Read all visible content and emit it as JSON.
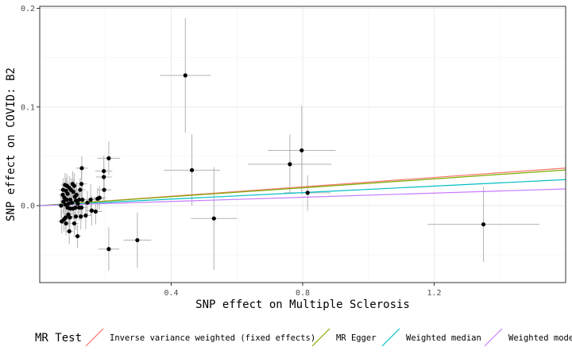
{
  "chart_data": {
    "type": "scatter",
    "xlabel": "SNP effect on Multiple Sclerosis",
    "ylabel": "SNP effect on COVID: B2",
    "xlim": [
      0,
      1.6
    ],
    "ylim": [
      -0.078,
      0.202
    ],
    "x_ticks": [
      {
        "value": 0.4,
        "label": "0.4"
      },
      {
        "value": 0.8,
        "label": "0.8"
      },
      {
        "value": 1.2,
        "label": "1.2"
      }
    ],
    "y_ticks": [
      {
        "value": 0.0,
        "label": "0.0"
      },
      {
        "value": 0.1,
        "label": "0.1"
      },
      {
        "value": 0.2,
        "label": "0.2"
      }
    ],
    "grid": true,
    "legend_position": "bottom",
    "legend_title": "MR Test",
    "lines": [
      {
        "name": "Inverse variance weighted (fixed effects)",
        "slope": 0.0238,
        "intercept": 0.0,
        "color": "#F8766D"
      },
      {
        "name": "MR Egger",
        "slope": 0.0226,
        "intercept": 0.0,
        "color": "#7CAE00"
      },
      {
        "name": "Weighted median",
        "slope": 0.0165,
        "intercept": 0.0,
        "color": "#00BFC4"
      },
      {
        "name": "Weighted mode",
        "slope": 0.0106,
        "intercept": 0.0,
        "color": "#C77CFF"
      }
    ],
    "points": [
      {
        "x": 0.443,
        "y": 0.132,
        "xerr": 0.077,
        "yerr": 0.058
      },
      {
        "x": 0.463,
        "y": 0.036,
        "xerr": 0.085,
        "yerr": 0.036
      },
      {
        "x": 0.797,
        "y": 0.056,
        "xerr": 0.103,
        "yerr": 0.045
      },
      {
        "x": 0.761,
        "y": 0.042,
        "xerr": 0.127,
        "yerr": 0.03
      },
      {
        "x": 0.815,
        "y": 0.013,
        "xerr": 0.07,
        "yerr": 0.018
      },
      {
        "x": 0.53,
        "y": -0.013,
        "xerr": 0.07,
        "yerr": 0.052
      },
      {
        "x": 1.35,
        "y": -0.019,
        "xerr": 0.17,
        "yerr": 0.038
      },
      {
        "x": 0.297,
        "y": -0.035,
        "xerr": 0.042,
        "yerr": 0.028
      },
      {
        "x": 0.21,
        "y": -0.044,
        "xerr": 0.032,
        "yerr": 0.022
      },
      {
        "x": 0.21,
        "y": 0.048,
        "xerr": 0.035,
        "yerr": 0.017
      },
      {
        "x": 0.195,
        "y": 0.035,
        "xerr": 0.026,
        "yerr": 0.016
      },
      {
        "x": 0.195,
        "y": 0.029,
        "xerr": 0.024,
        "yerr": 0.014
      },
      {
        "x": 0.196,
        "y": 0.016,
        "xerr": 0.022,
        "yerr": 0.014
      },
      {
        "x": 0.182,
        "y": 0.008,
        "xerr": 0.02,
        "yerr": 0.012
      },
      {
        "x": 0.176,
        "y": 0.007,
        "xerr": 0.02,
        "yerr": 0.011
      },
      {
        "x": 0.17,
        "y": -0.006,
        "xerr": 0.02,
        "yerr": 0.013
      },
      {
        "x": 0.158,
        "y": -0.005,
        "xerr": 0.019,
        "yerr": 0.015
      },
      {
        "x": 0.155,
        "y": 0.006,
        "xerr": 0.018,
        "yerr": 0.016
      },
      {
        "x": 0.145,
        "y": 0.003,
        "xerr": 0.018,
        "yerr": 0.012
      },
      {
        "x": 0.14,
        "y": -0.01,
        "xerr": 0.018,
        "yerr": 0.014
      },
      {
        "x": 0.13,
        "y": 0.006,
        "xerr": 0.018,
        "yerr": 0.015
      },
      {
        "x": 0.127,
        "y": -0.002,
        "xerr": 0.017,
        "yerr": 0.012
      },
      {
        "x": 0.125,
        "y": -0.011,
        "xerr": 0.016,
        "yerr": 0.013
      },
      {
        "x": 0.128,
        "y": 0.038,
        "xerr": 0.018,
        "yerr": 0.012
      },
      {
        "x": 0.127,
        "y": 0.022,
        "xerr": 0.017,
        "yerr": 0.014
      },
      {
        "x": 0.123,
        "y": 0.016,
        "xerr": 0.017,
        "yerr": 0.012
      },
      {
        "x": 0.12,
        "y": 0.006,
        "xerr": 0.016,
        "yerr": 0.013
      },
      {
        "x": 0.12,
        "y": -0.002,
        "xerr": 0.016,
        "yerr": 0.013
      },
      {
        "x": 0.116,
        "y": 0.002,
        "xerr": 0.016,
        "yerr": 0.012
      },
      {
        "x": 0.112,
        "y": 0.011,
        "xerr": 0.015,
        "yerr": 0.013
      },
      {
        "x": 0.11,
        "y": -0.011,
        "xerr": 0.015,
        "yerr": 0.014
      },
      {
        "x": 0.11,
        "y": 0.005,
        "xerr": 0.015,
        "yerr": 0.012
      },
      {
        "x": 0.109,
        "y": -0.002,
        "xerr": 0.015,
        "yerr": 0.012
      },
      {
        "x": 0.107,
        "y": 0.009,
        "xerr": 0.015,
        "yerr": 0.012
      },
      {
        "x": 0.105,
        "y": 0.02,
        "xerr": 0.015,
        "yerr": 0.013
      },
      {
        "x": 0.102,
        "y": -0.003,
        "xerr": 0.015,
        "yerr": 0.011
      },
      {
        "x": 0.102,
        "y": 0.014,
        "xerr": 0.015,
        "yerr": 0.013
      },
      {
        "x": 0.1,
        "y": 0.022,
        "xerr": 0.014,
        "yerr": 0.013
      },
      {
        "x": 0.098,
        "y": 0.003,
        "xerr": 0.014,
        "yerr": 0.012
      },
      {
        "x": 0.095,
        "y": 0.016,
        "xerr": 0.014,
        "yerr": 0.012
      },
      {
        "x": 0.093,
        "y": 0.006,
        "xerr": 0.014,
        "yerr": 0.013
      },
      {
        "x": 0.093,
        "y": -0.003,
        "xerr": 0.014,
        "yerr": 0.012
      },
      {
        "x": 0.092,
        "y": -0.012,
        "xerr": 0.014,
        "yerr": 0.013
      },
      {
        "x": 0.09,
        "y": 0.018,
        "xerr": 0.014,
        "yerr": 0.012
      },
      {
        "x": 0.088,
        "y": 0.002,
        "xerr": 0.013,
        "yerr": 0.013
      },
      {
        "x": 0.087,
        "y": -0.009,
        "xerr": 0.013,
        "yerr": 0.012
      },
      {
        "x": 0.085,
        "y": 0.012,
        "xerr": 0.013,
        "yerr": 0.012
      },
      {
        "x": 0.085,
        "y": -0.002,
        "xerr": 0.013,
        "yerr": 0.012
      },
      {
        "x": 0.083,
        "y": 0.02,
        "xerr": 0.013,
        "yerr": 0.012
      },
      {
        "x": 0.082,
        "y": 0.006,
        "xerr": 0.013,
        "yerr": 0.012
      },
      {
        "x": 0.08,
        "y": -0.018,
        "xerr": 0.013,
        "yerr": 0.012
      },
      {
        "x": 0.08,
        "y": 0.015,
        "xerr": 0.013,
        "yerr": 0.013
      },
      {
        "x": 0.079,
        "y": -0.012,
        "xerr": 0.012,
        "yerr": 0.012
      },
      {
        "x": 0.078,
        "y": 0.001,
        "xerr": 0.012,
        "yerr": 0.012
      },
      {
        "x": 0.077,
        "y": 0.021,
        "xerr": 0.012,
        "yerr": 0.012
      },
      {
        "x": 0.075,
        "y": 0.008,
        "xerr": 0.012,
        "yerr": 0.012
      },
      {
        "x": 0.074,
        "y": -0.014,
        "xerr": 0.012,
        "yerr": 0.012
      },
      {
        "x": 0.072,
        "y": 0.004,
        "xerr": 0.012,
        "yerr": 0.012
      },
      {
        "x": 0.071,
        "y": 0.016,
        "xerr": 0.012,
        "yerr": 0.012
      },
      {
        "x": 0.07,
        "y": 0.011,
        "xerr": 0.012,
        "yerr": 0.012
      },
      {
        "x": 0.067,
        "y": -0.016,
        "xerr": 0.012,
        "yerr": 0.012
      },
      {
        "x": 0.065,
        "y": 0.0,
        "xerr": 0.012,
        "yerr": 0.012
      },
      {
        "x": 0.09,
        "y": -0.026,
        "xerr": 0.012,
        "yerr": 0.013
      },
      {
        "x": 0.115,
        "y": -0.031,
        "xerr": 0.012,
        "yerr": 0.012
      },
      {
        "x": 0.105,
        "y": -0.018,
        "xerr": 0.013,
        "yerr": 0.012
      }
    ]
  }
}
